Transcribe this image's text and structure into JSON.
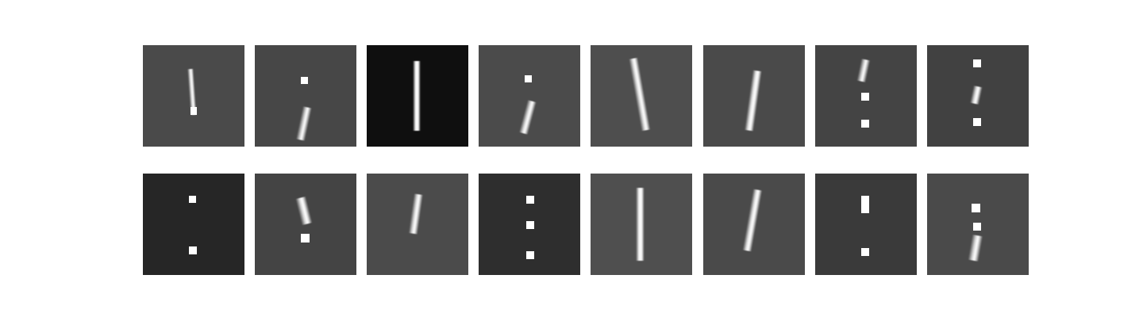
{
  "figure": {
    "rows": 2,
    "cols": 8,
    "tiles": [
      {
        "bg": "#4a4a4a",
        "marks": [
          {
            "kind": "bar",
            "c": "#dcdcdc",
            "tilt": -4
          },
          {
            "kind": "dot",
            "c": "#ffffff"
          }
        ]
      },
      {
        "bg": "#474747",
        "marks": [
          {
            "kind": "dot",
            "c": "#ffffff"
          },
          {
            "kind": "bar",
            "c": "#cfcfcf",
            "tilt": 12
          }
        ]
      },
      {
        "bg": "#0f0f0f",
        "marks": [
          {
            "kind": "bar",
            "c": "#f3f3f3",
            "tilt": 0
          }
        ]
      },
      {
        "bg": "#4b4b4b",
        "marks": [
          {
            "kind": "dot",
            "c": "#ffffff"
          },
          {
            "kind": "bar",
            "c": "#d6d6d6",
            "tilt": 15
          }
        ]
      },
      {
        "bg": "#4e4e4e",
        "marks": [
          {
            "kind": "bar",
            "c": "#d9d9d9",
            "tilt": -10
          }
        ]
      },
      {
        "bg": "#4a4a4a",
        "marks": [
          {
            "kind": "bar",
            "c": "#e2e2e2",
            "tilt": 8
          }
        ]
      },
      {
        "bg": "#444444",
        "marks": [
          {
            "kind": "bar",
            "c": "#cfcfcf",
            "tilt": 12
          },
          {
            "kind": "dot",
            "c": "#ffffff"
          },
          {
            "kind": "dot",
            "c": "#ffffff"
          }
        ]
      },
      {
        "bg": "#414141",
        "marks": [
          {
            "kind": "dot",
            "c": "#ffffff"
          },
          {
            "kind": "bar",
            "c": "#d9d9d9",
            "tilt": 12
          },
          {
            "kind": "dot",
            "c": "#ffffff"
          }
        ]
      },
      {
        "bg": "#262626",
        "marks": [
          {
            "kind": "dot",
            "c": "#ffffff"
          },
          {
            "kind": "dot",
            "c": "#ffffff"
          }
        ]
      },
      {
        "bg": "#444444",
        "marks": [
          {
            "kind": "bar",
            "c": "#d9d9d9",
            "tilt": -14
          },
          {
            "kind": "dot",
            "c": "#ffffff"
          }
        ]
      },
      {
        "bg": "#4b4b4b",
        "marks": [
          {
            "kind": "bar",
            "c": "#d8d8d8",
            "tilt": 8
          }
        ]
      },
      {
        "bg": "#2e2e2e",
        "marks": [
          {
            "kind": "dot",
            "c": "#ffffff"
          },
          {
            "kind": "dot",
            "c": "#ffffff"
          },
          {
            "kind": "dot",
            "c": "#ffffff"
          }
        ]
      },
      {
        "bg": "#4f4f4f",
        "marks": [
          {
            "kind": "bar",
            "c": "#efefef",
            "tilt": 0
          }
        ]
      },
      {
        "bg": "#4a4a4a",
        "marks": [
          {
            "kind": "bar",
            "c": "#dddddd",
            "tilt": 10
          }
        ]
      },
      {
        "bg": "#3a3a3a",
        "marks": [
          {
            "kind": "dot",
            "c": "#ffffff"
          },
          {
            "kind": "dot",
            "c": "#ffffff"
          }
        ]
      },
      {
        "bg": "#4a4a4a",
        "marks": [
          {
            "kind": "dot",
            "c": "#ffffff"
          },
          {
            "kind": "dot",
            "c": "#ffffff"
          },
          {
            "kind": "bar",
            "c": "#d5d5d5",
            "tilt": 10
          }
        ]
      }
    ]
  }
}
